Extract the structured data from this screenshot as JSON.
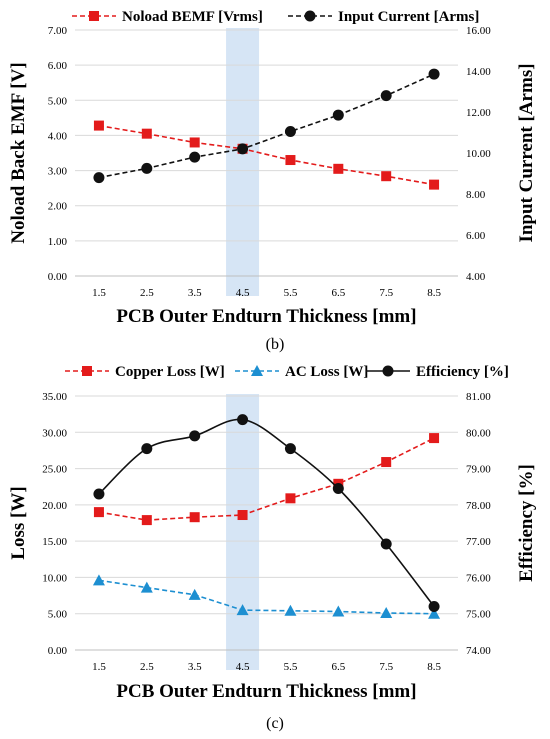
{
  "colors": {
    "red": "#e31b1b",
    "black": "#111111",
    "blue": "#1d8fd1",
    "highlight": "#cfe0f3"
  },
  "chart_data": [
    {
      "type": "line",
      "panel_label": "(b)",
      "x": [
        1.5,
        2.5,
        3.5,
        4.5,
        5.5,
        6.5,
        7.5,
        8.5
      ],
      "x_ticks": [
        "1.5",
        "2.5",
        "3.5",
        "4.5",
        "5.5",
        "6.5",
        "7.5",
        "8.5"
      ],
      "xlabel": "PCB Outer Endturn Thickness [mm]",
      "ylabel": "Noload Back EMF [V]",
      "ylabel_right": "Input Current [Arms]",
      "ylim": [
        0,
        7
      ],
      "ylim_right": [
        4,
        16
      ],
      "y_ticks": [
        "0.00",
        "1.00",
        "2.00",
        "3.00",
        "4.00",
        "5.00",
        "6.00",
        "7.00"
      ],
      "y_ticks_right": [
        "4.00",
        "6.00",
        "8.00",
        "10.00",
        "12.00",
        "14.00",
        "16.00"
      ],
      "highlight_x": 4.5,
      "grid": "horizontal",
      "legend_position": "top",
      "series": [
        {
          "name": "Noload BEMF [Vrms]",
          "axis": "left",
          "marker": "square",
          "dash": true,
          "color": "#e31b1b",
          "values": [
            4.28,
            4.05,
            3.8,
            3.62,
            3.3,
            3.05,
            2.84,
            2.6
          ]
        },
        {
          "name": "Input Current [Arms]",
          "axis": "right",
          "marker": "circle",
          "dash": true,
          "color": "#111111",
          "values": [
            8.8,
            9.25,
            9.8,
            10.2,
            11.05,
            11.85,
            12.8,
            13.85
          ]
        }
      ]
    },
    {
      "type": "line",
      "panel_label": "(c)",
      "x": [
        1.5,
        2.5,
        3.5,
        4.5,
        5.5,
        6.5,
        7.5,
        8.5
      ],
      "x_ticks": [
        "1.5",
        "2.5",
        "3.5",
        "4.5",
        "5.5",
        "6.5",
        "7.5",
        "8.5"
      ],
      "xlabel": "PCB Outer Endturn Thickness [mm]",
      "ylabel": "Loss [W]",
      "ylabel_right": "Efficiency [%]",
      "ylim": [
        0,
        35
      ],
      "ylim_right": [
        74,
        81
      ],
      "y_ticks": [
        "0.00",
        "5.00",
        "10.00",
        "15.00",
        "20.00",
        "25.00",
        "30.00",
        "35.00"
      ],
      "y_ticks_right": [
        "74.00",
        "75.00",
        "76.00",
        "77.00",
        "78.00",
        "79.00",
        "80.00",
        "81.00"
      ],
      "highlight_x": 4.5,
      "grid": "horizontal",
      "legend_position": "top",
      "series": [
        {
          "name": "Copper Loss [W]",
          "axis": "left",
          "marker": "square",
          "dash": true,
          "color": "#e31b1b",
          "values": [
            19.0,
            17.9,
            18.3,
            18.6,
            20.9,
            22.9,
            25.9,
            29.2
          ]
        },
        {
          "name": "AC Loss [W]",
          "axis": "left",
          "marker": "triangle",
          "dash": true,
          "color": "#1d8fd1",
          "values": [
            9.6,
            8.6,
            7.6,
            5.5,
            5.4,
            5.3,
            5.1,
            5.0
          ]
        },
        {
          "name": "Efficiency [%]",
          "axis": "right",
          "marker": "circle",
          "dash": false,
          "color": "#111111",
          "values": [
            78.3,
            79.55,
            79.9,
            80.35,
            79.55,
            78.45,
            76.92,
            75.2
          ]
        }
      ]
    }
  ]
}
